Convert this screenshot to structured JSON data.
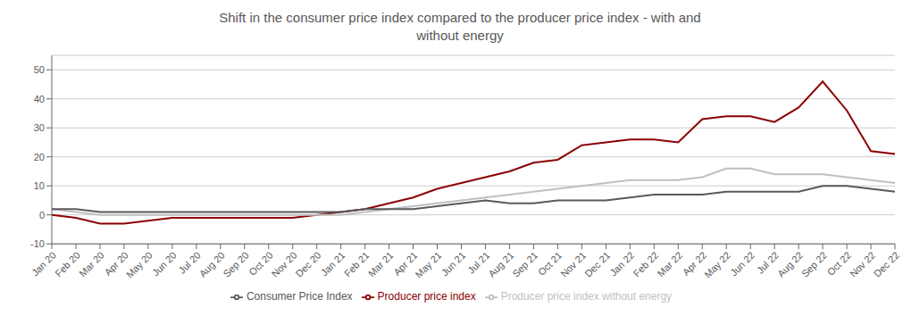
{
  "chart_data": {
    "type": "line",
    "title": "Shift in the consumer price index compared to the producer price index - with and\nwithout energy",
    "categories": [
      "Jan 20",
      "Feb 20",
      "Mar 20",
      "Apr 20",
      "May 20",
      "Jun 20",
      "Jul 20",
      "Aug 20",
      "Sep 20",
      "Oct 20",
      "Nov 20",
      "Dec 20",
      "Jan 21",
      "Feb 21",
      "Mar 21",
      "Apr 21",
      "May 21",
      "Jun 21",
      "Jul 21",
      "Aug 21",
      "Sep 21",
      "Oct 21",
      "Nov 21",
      "Dec 21",
      "Jan 22",
      "Feb 22",
      "Mar 22",
      "Apr 22",
      "May 22",
      "Jun 22",
      "Jul 22",
      "Aug 22",
      "Sep 22",
      "Oct 22",
      "Nov 22",
      "Dec 22"
    ],
    "series": [
      {
        "name": "Producer price index",
        "color": "#8B0000",
        "values": [
          0,
          -1,
          -3,
          -3,
          -2,
          -1,
          -1,
          -1,
          -1,
          -1,
          -1,
          0,
          1,
          2,
          4,
          6,
          9,
          11,
          13,
          15,
          18,
          19,
          24,
          25,
          26,
          26,
          25,
          33,
          34,
          34,
          32,
          37,
          46,
          36,
          22,
          21
        ]
      },
      {
        "name": "Producer price index without energy",
        "color": "#BFBFBF",
        "values": [
          2,
          1,
          0,
          0,
          0,
          0,
          0,
          0,
          0,
          0,
          0,
          0,
          0,
          1,
          2,
          3,
          4,
          5,
          6,
          7,
          8,
          9,
          10,
          11,
          12,
          12,
          12,
          13,
          16,
          16,
          14,
          14,
          14,
          13,
          12,
          11
        ]
      },
      {
        "name": "Consumer Price Index",
        "color": "#595959",
        "values": [
          2,
          2,
          1,
          1,
          1,
          1,
          1,
          1,
          1,
          1,
          1,
          1,
          1,
          2,
          2,
          2,
          3,
          4,
          5,
          4,
          4,
          5,
          5,
          5,
          6,
          7,
          7,
          7,
          8,
          8,
          8,
          8,
          10,
          10,
          9,
          8
        ]
      }
    ],
    "ylim": [
      -10,
      55
    ],
    "yticks": [
      -10,
      0,
      10,
      20,
      30,
      40,
      50
    ],
    "grid": true,
    "legend": "bottom"
  }
}
